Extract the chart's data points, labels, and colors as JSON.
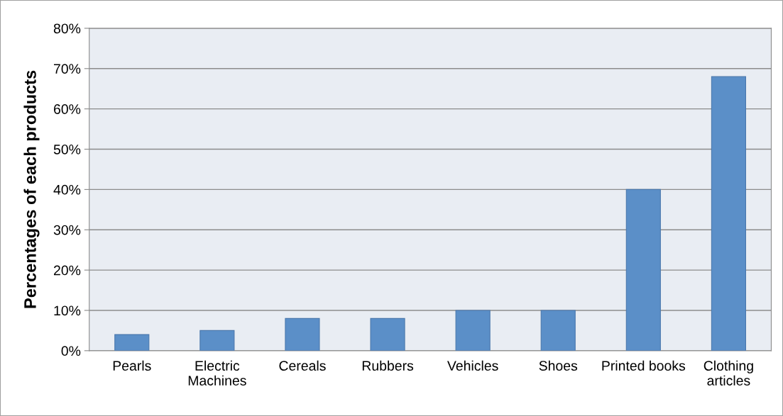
{
  "chart_data": {
    "type": "bar",
    "categories": [
      "Pearls",
      "Electric\nMachines",
      "Cereals",
      "Rubbers",
      "Vehicles",
      "Shoes",
      "Printed books",
      "Clothing\narticles"
    ],
    "values": [
      4,
      5,
      8,
      8,
      10,
      10,
      40,
      68
    ],
    "color": "#5b8fc8",
    "ylabel": "Percentages of each products",
    "ylim": [
      0,
      80
    ],
    "yticks": [
      {
        "value": 0,
        "label": "0%"
      },
      {
        "value": 10,
        "label": "10%"
      },
      {
        "value": 20,
        "label": "20%"
      },
      {
        "value": 30,
        "label": "30%"
      },
      {
        "value": 40,
        "label": "40%"
      },
      {
        "value": 50,
        "label": "50%"
      },
      {
        "value": 60,
        "label": "60%"
      },
      {
        "value": 70,
        "label": "70%"
      },
      {
        "value": 80,
        "label": "80%"
      }
    ],
    "grid": "y"
  }
}
